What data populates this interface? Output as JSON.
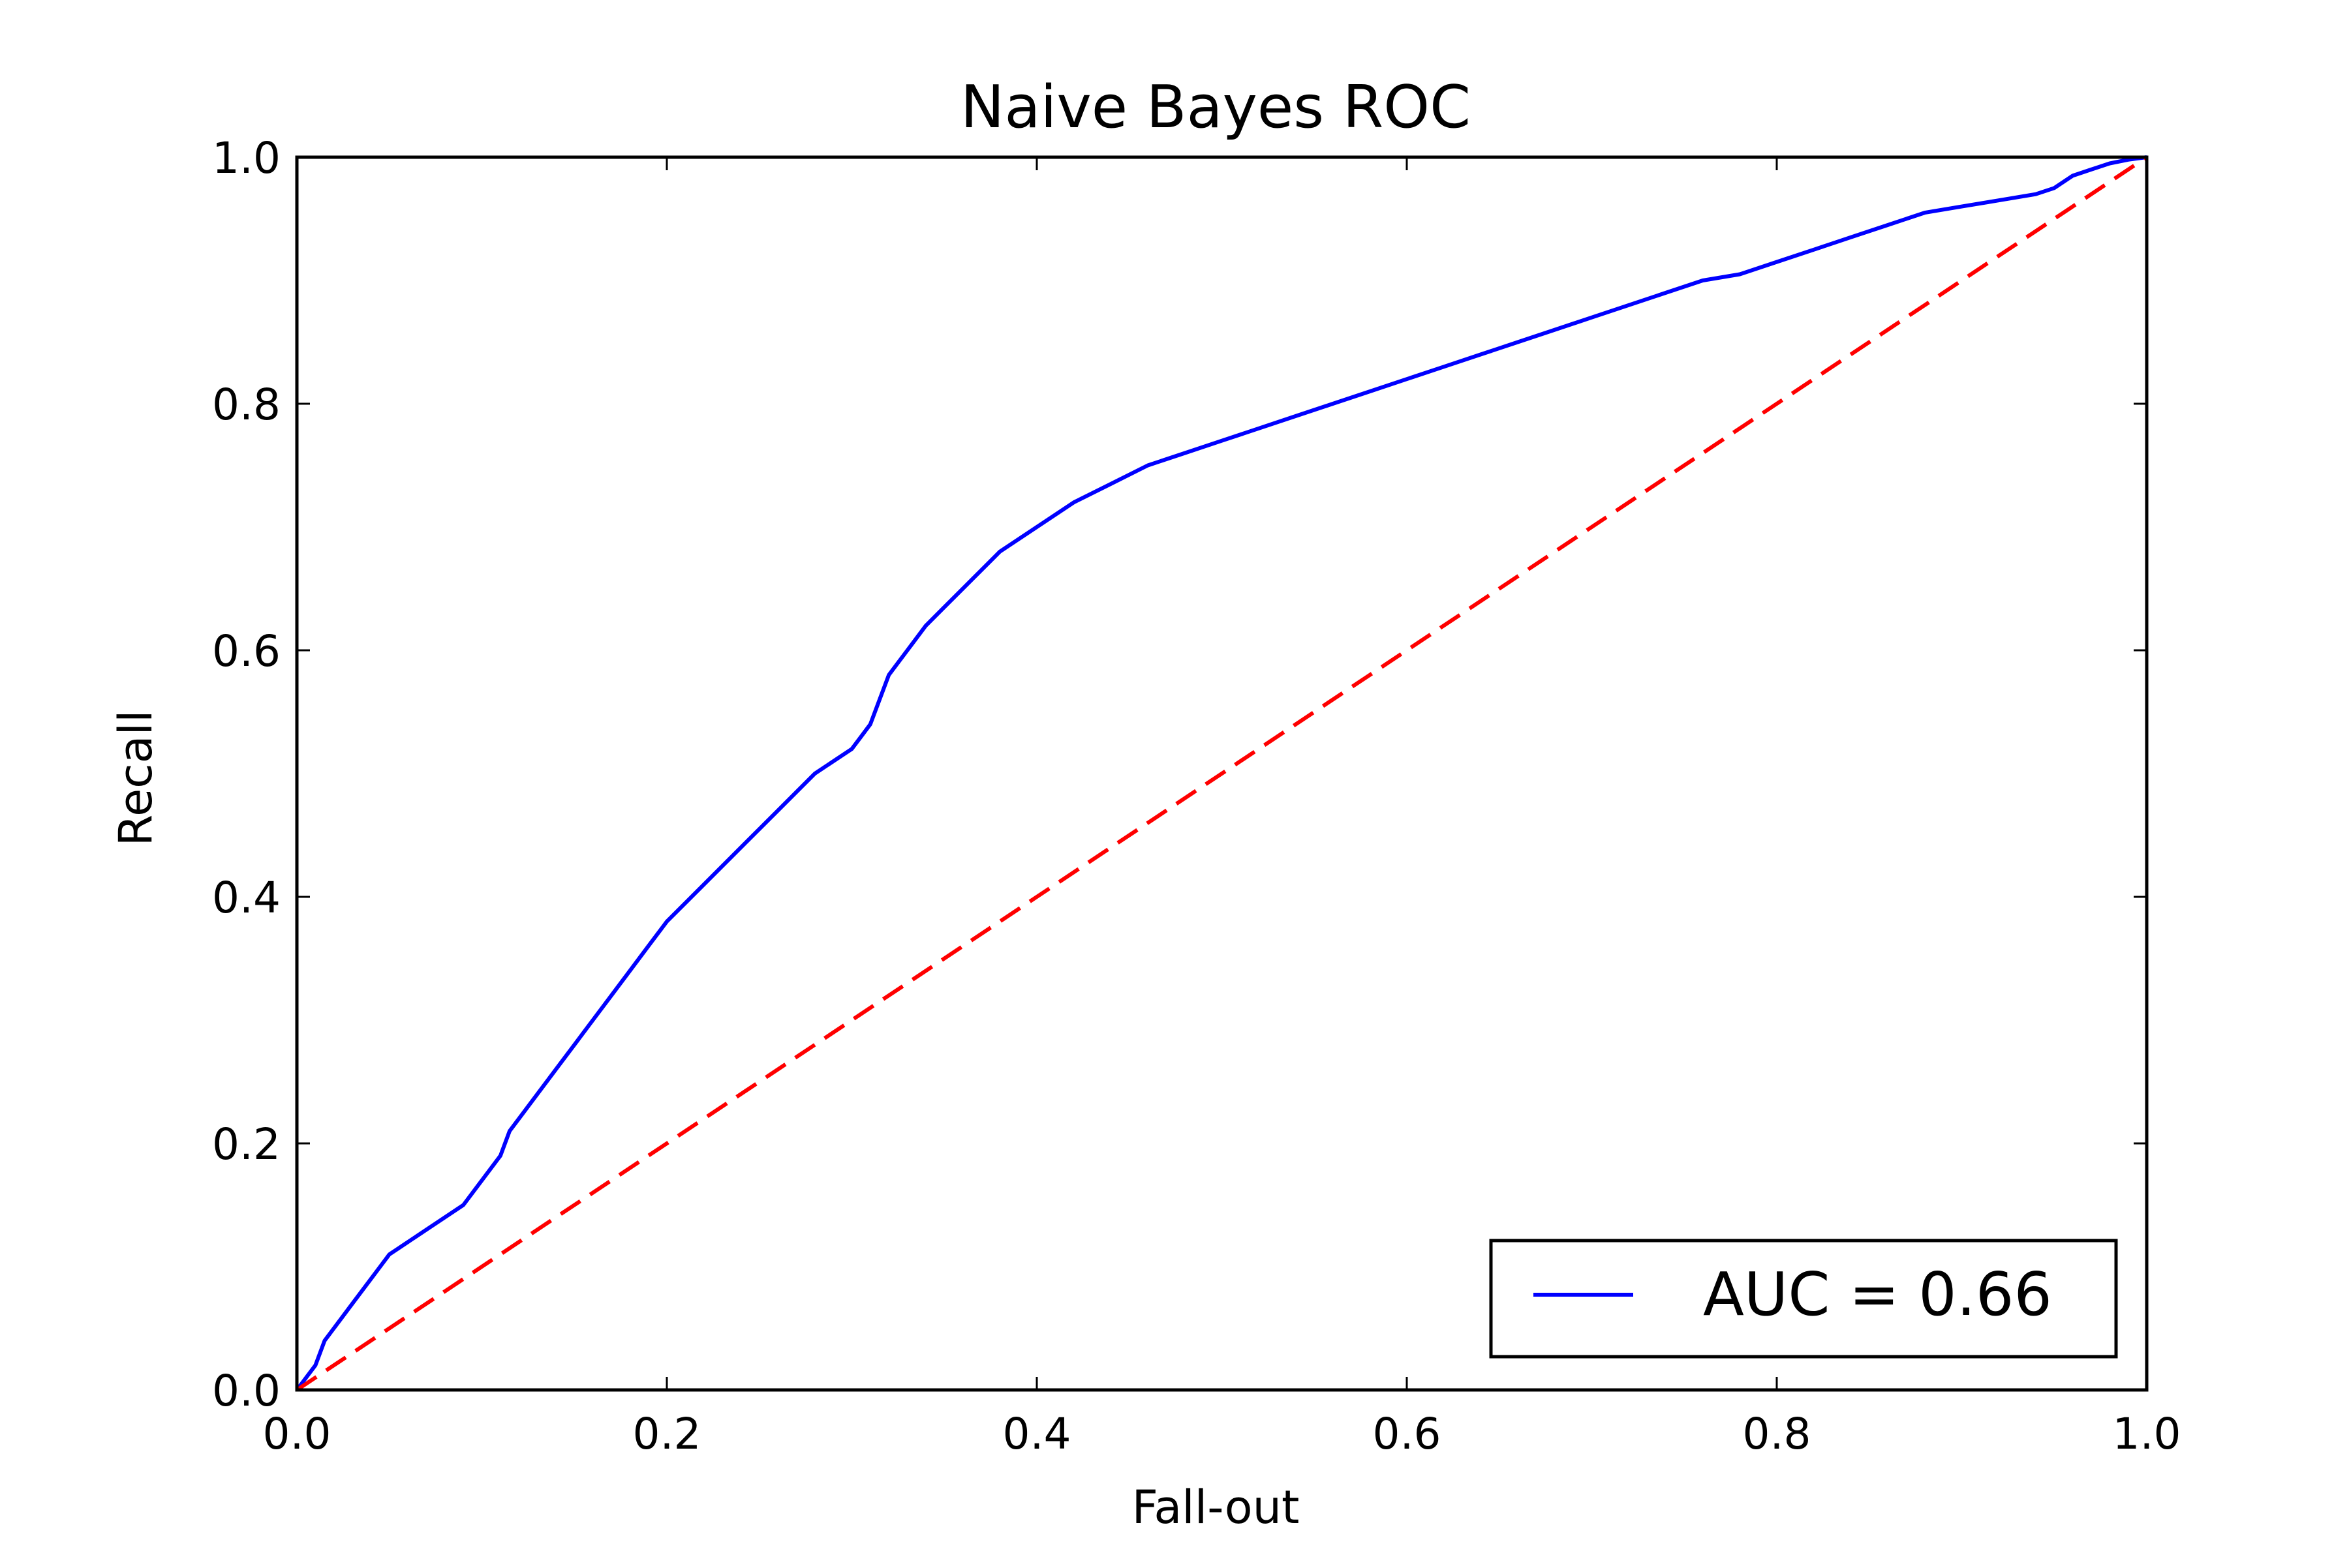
{
  "chart_data": {
    "type": "line",
    "title": "Naive Bayes ROC",
    "xlabel": "Fall-out",
    "ylabel": "Recall",
    "xlim": [
      0.0,
      1.0
    ],
    "ylim": [
      0.0,
      1.0
    ],
    "x_ticks": [
      0.0,
      0.2,
      0.4,
      0.6,
      0.8,
      1.0
    ],
    "y_ticks": [
      0.0,
      0.2,
      0.4,
      0.6,
      0.8,
      1.0
    ],
    "x_tick_labels": [
      "0.0",
      "0.2",
      "0.4",
      "0.6",
      "0.8",
      "1.0"
    ],
    "y_tick_labels": [
      "0.0",
      "0.2",
      "0.4",
      "0.6",
      "0.8",
      "1.0"
    ],
    "grid": false,
    "legend": {
      "placement": "lower-right",
      "entries": [
        "AUC = 0.66"
      ]
    },
    "series": [
      {
        "name": "AUC = 0.66",
        "color": "#0000ff",
        "style": "solid",
        "x": [
          0.0,
          0.005,
          0.01,
          0.015,
          0.02,
          0.025,
          0.03,
          0.035,
          0.04,
          0.045,
          0.05,
          0.055,
          0.06,
          0.07,
          0.08,
          0.09,
          0.1,
          0.105,
          0.11,
          0.115,
          0.12,
          0.13,
          0.14,
          0.15,
          0.16,
          0.17,
          0.18,
          0.19,
          0.2,
          0.22,
          0.24,
          0.26,
          0.28,
          0.3,
          0.305,
          0.31,
          0.315,
          0.32,
          0.33,
          0.34,
          0.35,
          0.36,
          0.38,
          0.4,
          0.42,
          0.44,
          0.46,
          0.48,
          0.5,
          0.52,
          0.54,
          0.56,
          0.58,
          0.6,
          0.62,
          0.64,
          0.66,
          0.68,
          0.7,
          0.72,
          0.74,
          0.76,
          0.78,
          0.8,
          0.82,
          0.84,
          0.86,
          0.88,
          0.9,
          0.92,
          0.94,
          0.95,
          0.96,
          0.97,
          0.98,
          0.99,
          1.0
        ],
        "y": [
          0.0,
          0.01,
          0.02,
          0.04,
          0.05,
          0.06,
          0.07,
          0.08,
          0.09,
          0.1,
          0.11,
          0.115,
          0.12,
          0.13,
          0.14,
          0.15,
          0.17,
          0.18,
          0.19,
          0.21,
          0.22,
          0.24,
          0.26,
          0.28,
          0.3,
          0.32,
          0.34,
          0.36,
          0.38,
          0.41,
          0.44,
          0.47,
          0.5,
          0.52,
          0.53,
          0.54,
          0.56,
          0.58,
          0.6,
          0.62,
          0.635,
          0.65,
          0.68,
          0.7,
          0.72,
          0.735,
          0.75,
          0.76,
          0.77,
          0.78,
          0.79,
          0.8,
          0.81,
          0.82,
          0.83,
          0.84,
          0.85,
          0.86,
          0.87,
          0.88,
          0.89,
          0.9,
          0.905,
          0.915,
          0.925,
          0.935,
          0.945,
          0.955,
          0.96,
          0.965,
          0.97,
          0.975,
          0.985,
          0.99,
          0.995,
          0.998,
          1.0
        ]
      },
      {
        "name": "",
        "color": "#ff0000",
        "style": "dashed",
        "x": [
          0.0,
          1.0
        ],
        "y": [
          0.0,
          1.0
        ]
      }
    ]
  }
}
